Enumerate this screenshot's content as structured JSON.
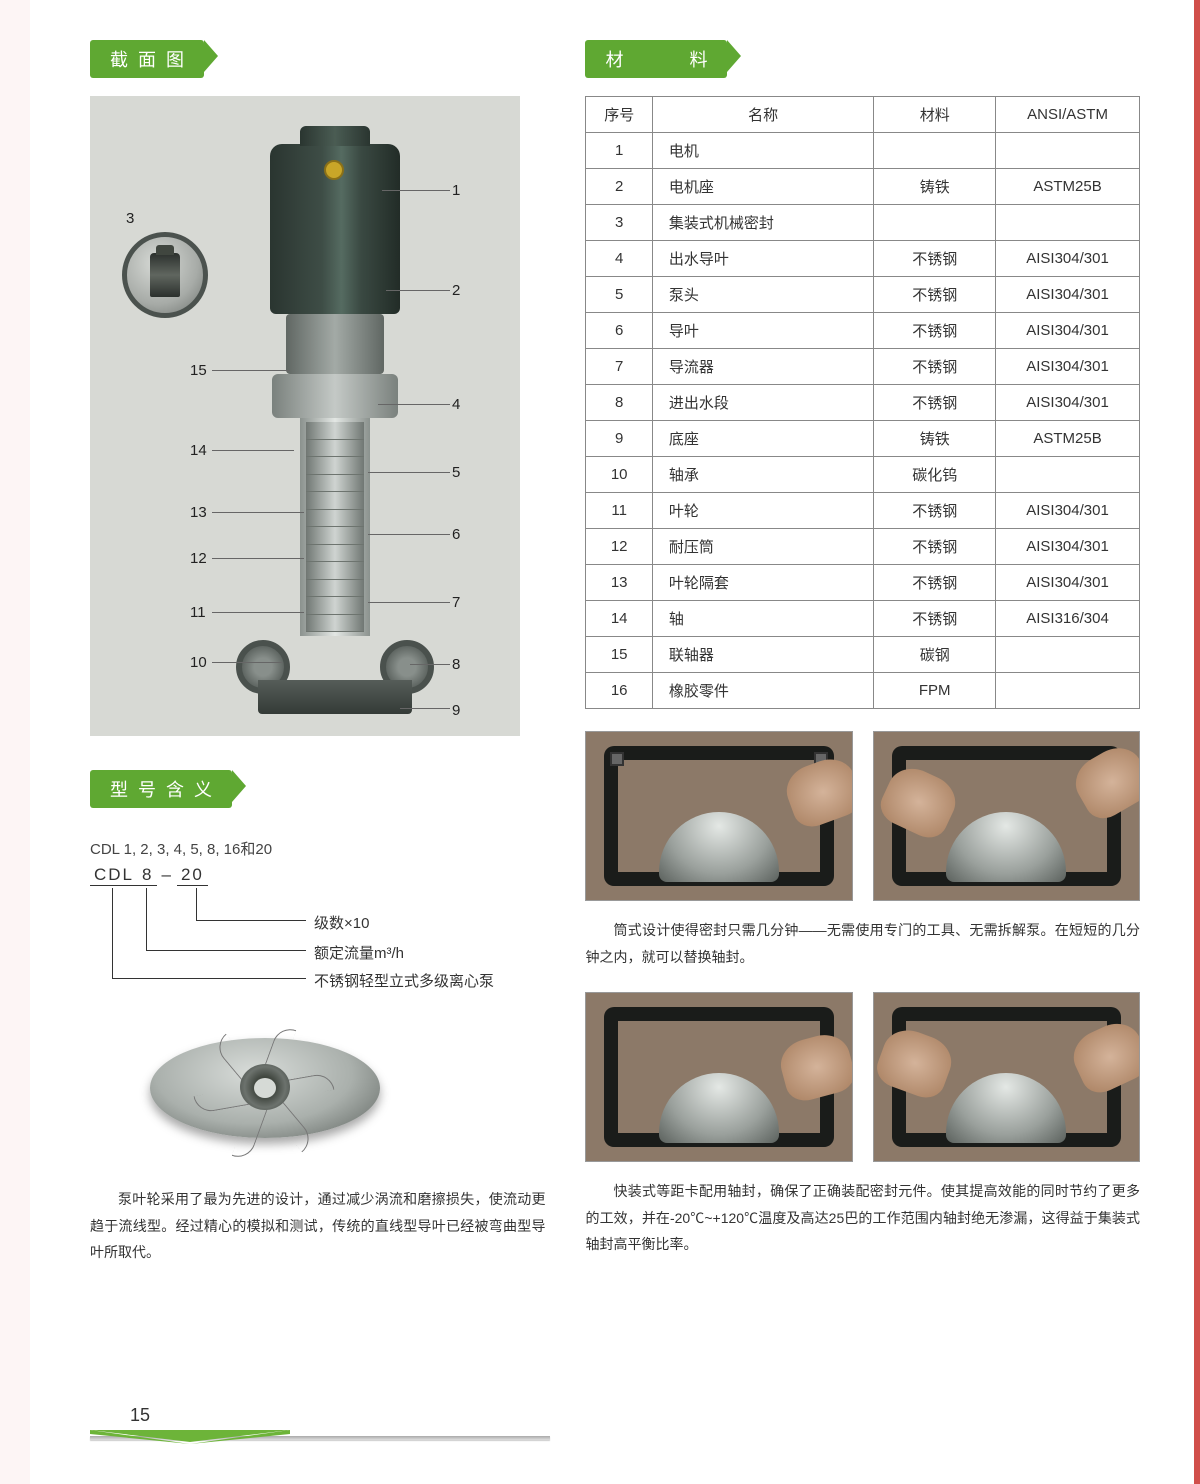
{
  "colors": {
    "accent": "#5fa832",
    "page_bg": "#fdf5f5",
    "diagram_bg": "#d7d9d4",
    "text": "#333333",
    "border": "#888888"
  },
  "left": {
    "section_diagram_title": "截面图",
    "section_model_title": "型号含义",
    "model_series_line": "CDL 1, 2, 3, 4, 5, 8, 16和20",
    "model_code": {
      "prefix": "CDL",
      "num1": "8",
      "dash": "–",
      "num2": "20"
    },
    "model_legend": {
      "line1": "级数×10",
      "line2": "额定流量m³/h",
      "line3": "不锈钢轻型立式多级离心泵"
    },
    "impeller_para": "泵叶轮采用了最为先进的设计，通过减少涡流和磨擦损失，使流动更趋于流线型。经过精心的模拟和测试，传统的直线型导叶已经被弯曲型导叶所取代。",
    "callouts": [
      "1",
      "2",
      "3",
      "4",
      "5",
      "6",
      "7",
      "8",
      "9",
      "10",
      "11",
      "12",
      "13",
      "14",
      "15"
    ]
  },
  "right": {
    "section_material_title": "材　　料",
    "table": {
      "headers": [
        "序号",
        "名称",
        "材料",
        "ANSI/ASTM"
      ],
      "rows": [
        [
          "1",
          "电机",
          "",
          ""
        ],
        [
          "2",
          "电机座",
          "铸铁",
          "ASTM25B"
        ],
        [
          "3",
          "集装式机械密封",
          "",
          ""
        ],
        [
          "4",
          "出水导叶",
          "不锈钢",
          "AISI304/301"
        ],
        [
          "5",
          "泵头",
          "不锈钢",
          "AISI304/301"
        ],
        [
          "6",
          "导叶",
          "不锈钢",
          "AISI304/301"
        ],
        [
          "7",
          "导流器",
          "不锈钢",
          "AISI304/301"
        ],
        [
          "8",
          "进出水段",
          "不锈钢",
          "AISI304/301"
        ],
        [
          "9",
          "底座",
          "铸铁",
          "ASTM25B"
        ],
        [
          "10",
          "轴承",
          "碳化钨",
          ""
        ],
        [
          "11",
          "叶轮",
          "不锈钢",
          "AISI304/301"
        ],
        [
          "12",
          "耐压筒",
          "不锈钢",
          "AISI304/301"
        ],
        [
          "13",
          "叶轮隔套",
          "不锈钢",
          "AISI304/301"
        ],
        [
          "14",
          "轴",
          "不锈钢",
          "AISI316/304"
        ],
        [
          "15",
          "联轴器",
          "碳钢",
          ""
        ],
        [
          "16",
          "橡胶零件",
          "FPM",
          ""
        ]
      ],
      "col_widths_pct": [
        12,
        40,
        22,
        26
      ]
    },
    "para1": "筒式设计使得密封只需几分钟——无需使用专门的工具、无需拆解泵。在短短的几分钟之内，就可以替换轴封。",
    "para2": "快装式等距卡配用轴封，确保了正确装配密封元件。使其提高效能的同时节约了更多的工效，并在-20℃~+120℃温度及高达25巴的工作范围内轴封绝无渗漏，这得益于集装式轴封高平衡比率。"
  },
  "page_number": "15"
}
